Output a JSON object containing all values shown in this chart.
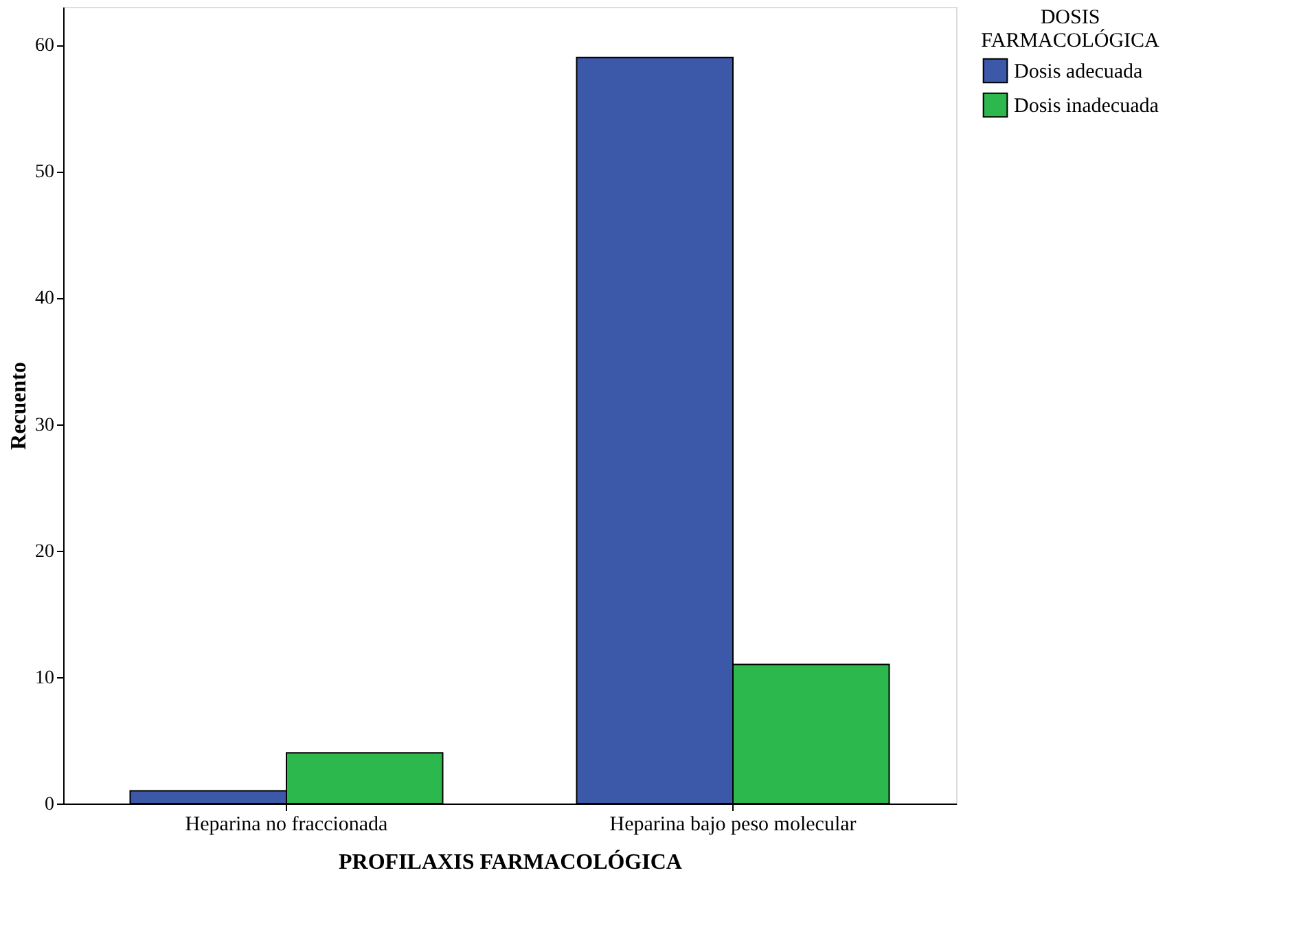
{
  "chart_data": {
    "type": "bar",
    "xlabel": "PROFILAXIS FARMACOLÓGICA",
    "ylabel": "Recuento",
    "legend_title": "DOSIS FARMACOLÓGICA",
    "categories": [
      "Heparina no fraccionada",
      "Heparina bajo peso molecular"
    ],
    "series": [
      {
        "name": "Dosis adecuada",
        "color": "#3c58a8",
        "values": [
          1,
          59
        ]
      },
      {
        "name": "Dosis inadecuada",
        "color": "#2db84d",
        "values": [
          4,
          11
        ]
      }
    ],
    "ylim": [
      0,
      63
    ],
    "yticks": [
      0,
      10,
      20,
      30,
      40,
      50,
      60
    ],
    "grid": false,
    "legend": "top right"
  }
}
